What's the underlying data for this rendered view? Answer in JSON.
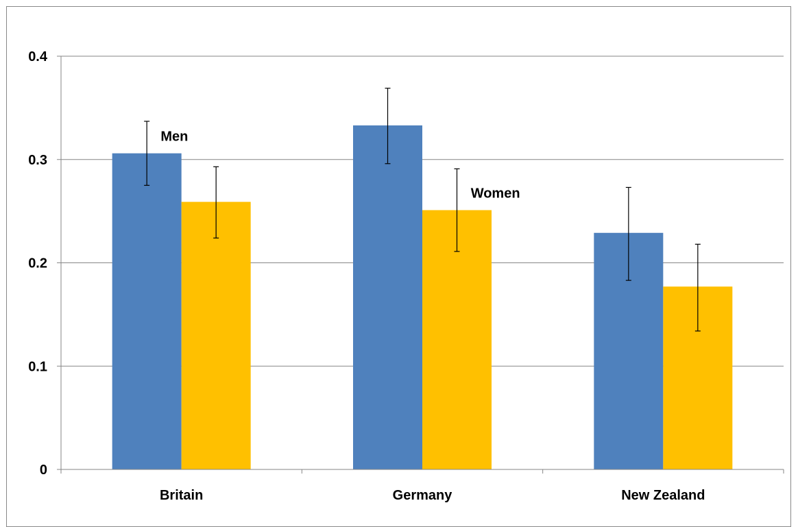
{
  "chart_data": {
    "type": "bar",
    "title": "",
    "xlabel": "",
    "ylabel": "",
    "categories": [
      "Britain",
      "Germany",
      "New Zealand"
    ],
    "ylim": [
      0,
      0.4
    ],
    "yticks": [
      0,
      0.1,
      0.2,
      0.3,
      0.4
    ],
    "ytick_labels": [
      "0",
      "0.1",
      "0.2",
      "0.3",
      "0.4"
    ],
    "grid": true,
    "legend": "none",
    "series": [
      {
        "color": "#4F81BD",
        "values": [
          0.306,
          0.333,
          0.229
        ],
        "err_low": [
          0.275,
          0.296,
          0.183
        ],
        "err_high": [
          0.337,
          0.369,
          0.273
        ]
      },
      {
        "color": "#FFC000",
        "values": [
          0.259,
          0.251,
          0.177
        ],
        "err_low": [
          0.224,
          0.211,
          0.134
        ],
        "err_high": [
          0.293,
          0.291,
          0.218
        ]
      }
    ],
    "annotations": [
      {
        "text": "Men",
        "series_index": 0,
        "category_index": 0
      },
      {
        "text": "Women",
        "series_index": 1,
        "category_index": 1
      }
    ]
  }
}
